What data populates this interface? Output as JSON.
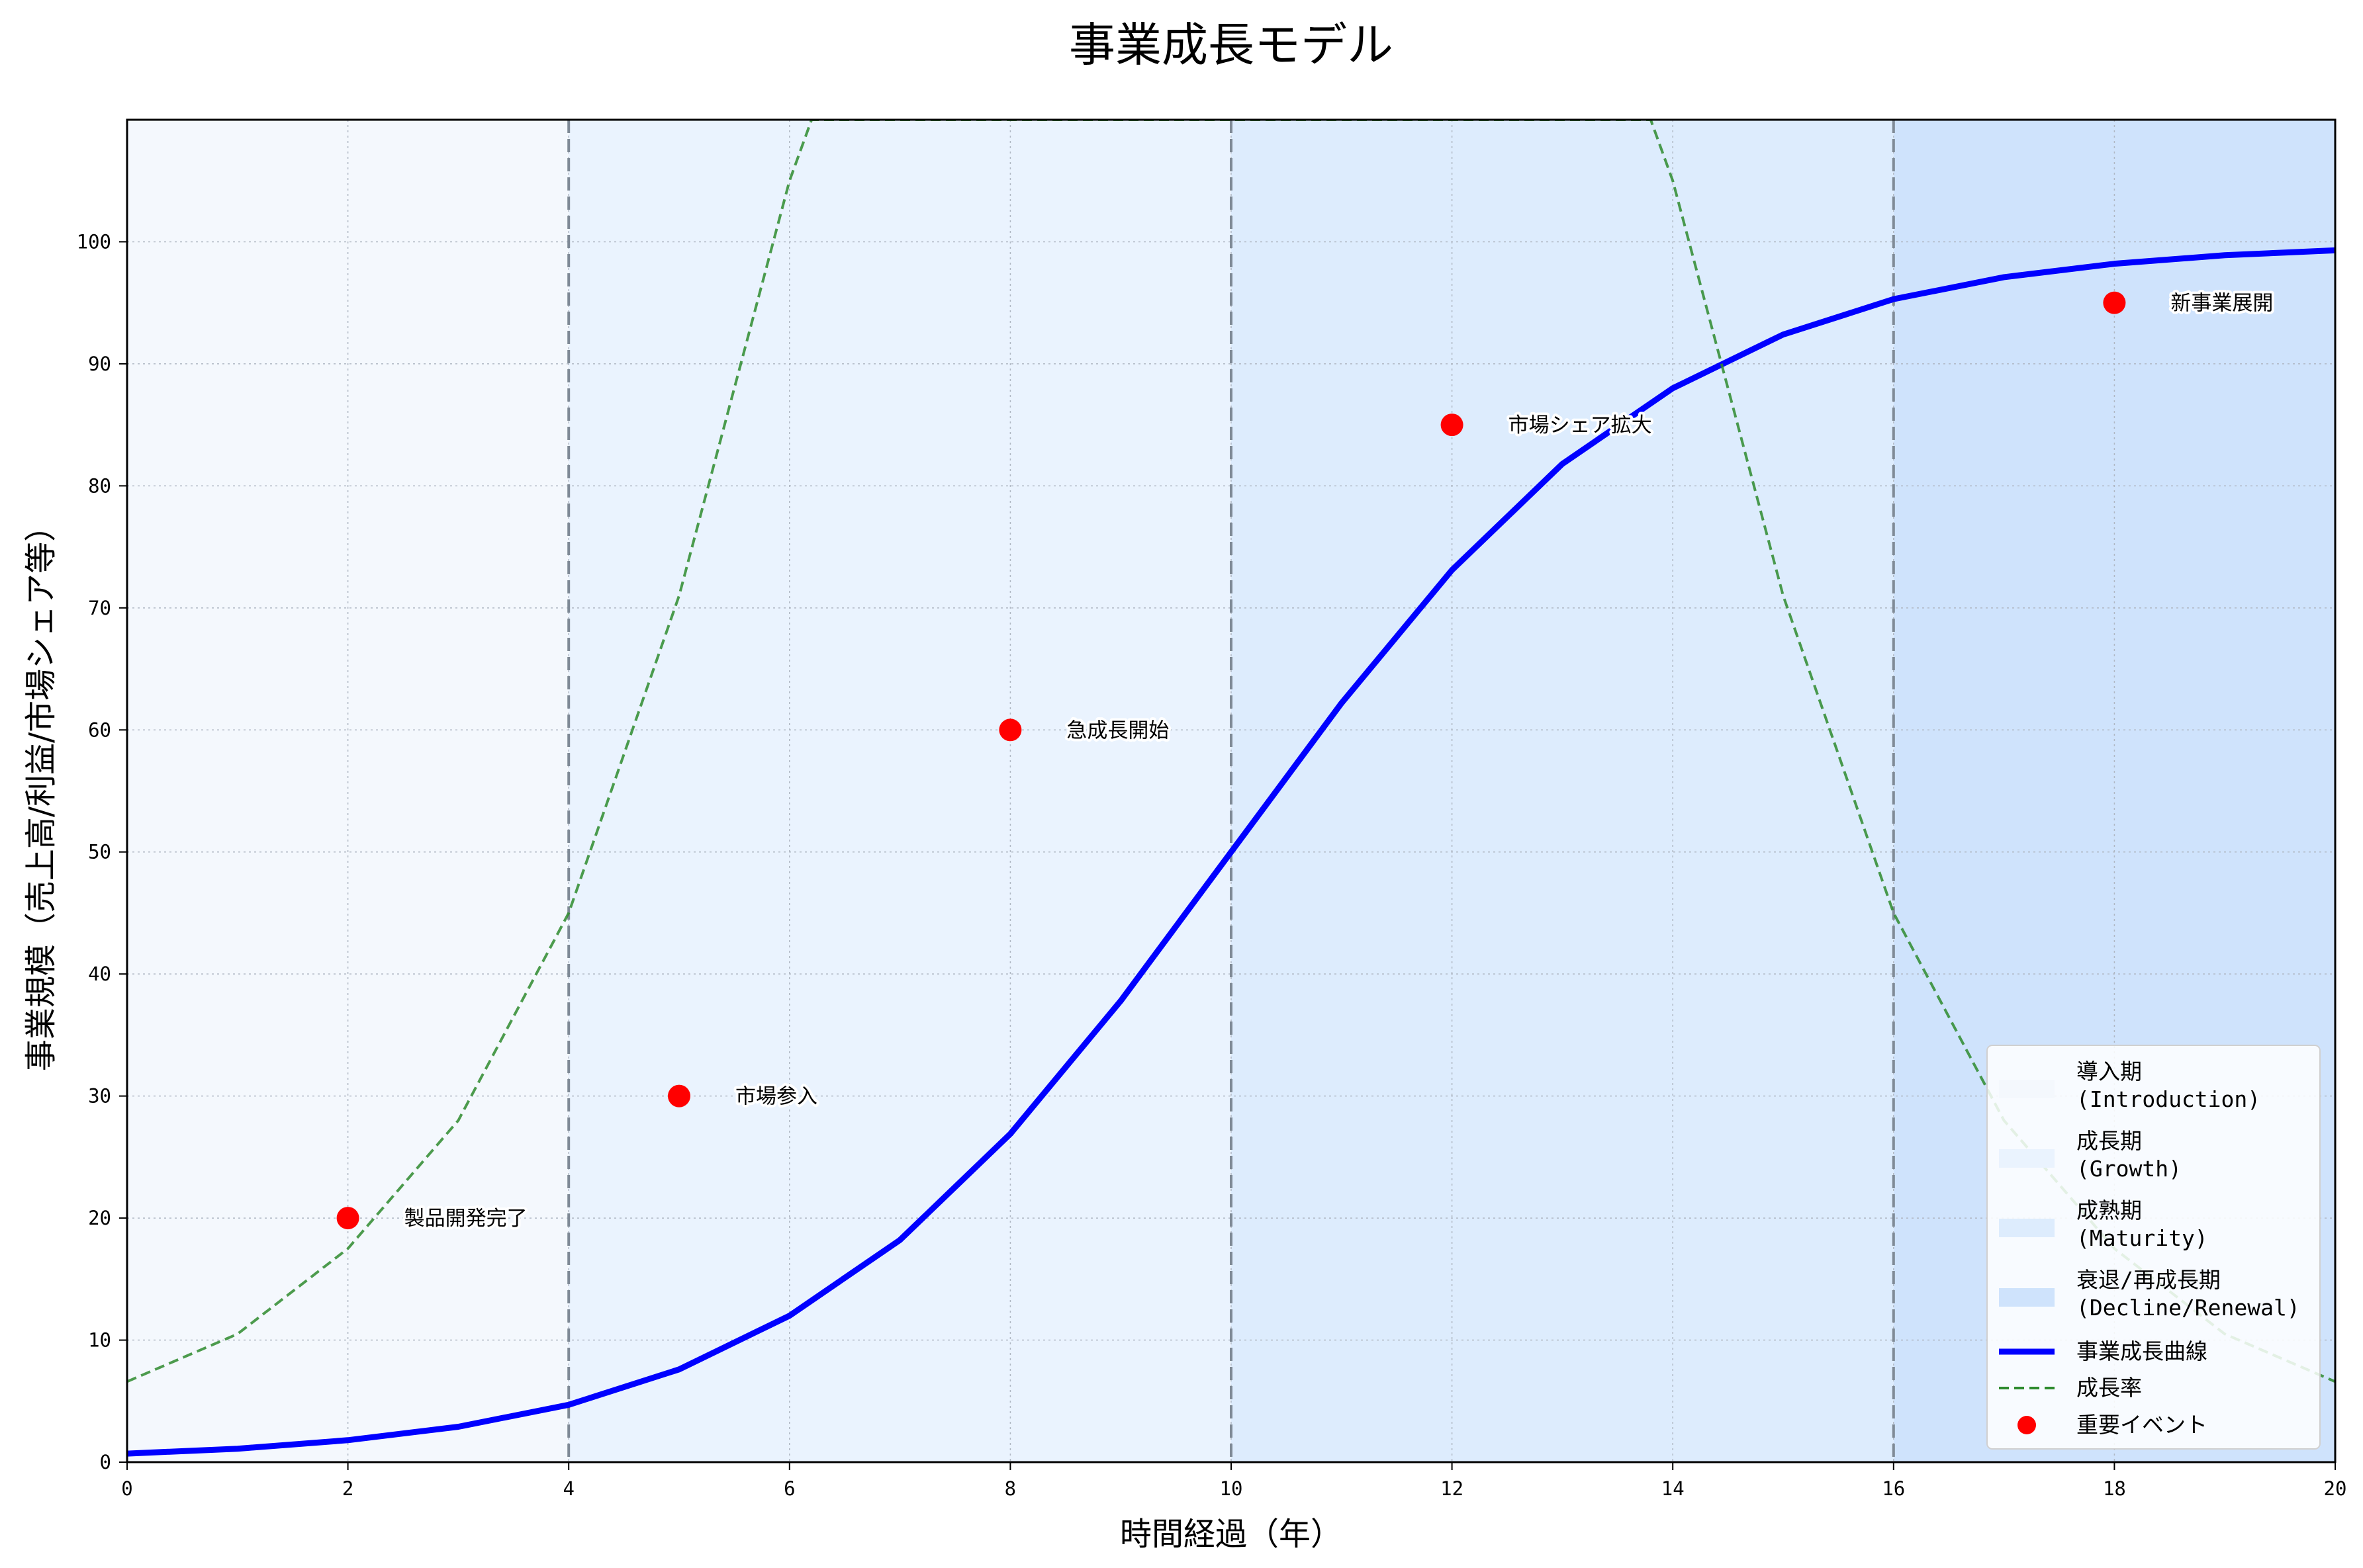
{
  "chart_data": {
    "type": "line",
    "title": "事業成長モデル",
    "xlabel": "時間経過（年）",
    "ylabel": "事業規模（売上高/利益/市場シェア等）",
    "xlim": [
      0,
      20
    ],
    "ylim": [
      0,
      110
    ],
    "xticks": [
      0,
      2,
      4,
      6,
      8,
      10,
      12,
      14,
      16,
      18,
      20
    ],
    "yticks": [
      0,
      10,
      20,
      30,
      40,
      50,
      60,
      70,
      80,
      90,
      100
    ],
    "grid": true,
    "legend_position": "lower-right",
    "phase_boundaries": [
      4,
      10,
      16
    ],
    "phases": [
      {
        "label": "導入期\n(Introduction)",
        "x": [
          0,
          4
        ],
        "color": "#f4f8fd"
      },
      {
        "label": "成長期\n(Growth)",
        "x": [
          4,
          10
        ],
        "color": "#eaf3fe"
      },
      {
        "label": "成熟期\n(Maturity)",
        "x": [
          10,
          16
        ],
        "color": "#ddecfd"
      },
      {
        "label": "衰退/再成長期\n(Decline/Renewal)",
        "x": [
          16,
          20
        ],
        "color": "#cfe3fc"
      }
    ],
    "series": [
      {
        "name": "事業成長曲線",
        "style": "solid",
        "color": "#0000ff",
        "x": [
          0,
          1,
          2,
          3,
          4,
          5,
          6,
          7,
          8,
          9,
          10,
          11,
          12,
          13,
          14,
          15,
          16,
          17,
          18,
          19,
          20
        ],
        "y": [
          0.7,
          1.1,
          1.8,
          2.9,
          4.7,
          7.6,
          12.0,
          18.2,
          26.9,
          37.8,
          50.0,
          62.2,
          73.1,
          81.8,
          88.0,
          92.4,
          95.3,
          97.1,
          98.2,
          98.9,
          99.3
        ]
      },
      {
        "name": "成長率",
        "style": "dashed",
        "color": "#2e8b2e",
        "x": [
          0,
          1,
          2,
          3,
          4,
          5,
          6,
          6.2,
          13.8,
          14,
          15,
          16,
          17,
          18,
          19,
          20
        ],
        "y": [
          6.6,
          10.5,
          17.5,
          28.0,
          45.0,
          71.0,
          105.0,
          110,
          110,
          105.0,
          71.0,
          45.0,
          28.0,
          17.5,
          10.5,
          6.6
        ]
      }
    ],
    "events": {
      "name": "重要イベント",
      "color": "#ff0000",
      "points": [
        {
          "x": 2,
          "y": 20,
          "label": "製品開発完了"
        },
        {
          "x": 5,
          "y": 30,
          "label": "市場参入"
        },
        {
          "x": 8,
          "y": 60,
          "label": "急成長開始"
        },
        {
          "x": 12,
          "y": 85,
          "label": "市場シェア拡大"
        },
        {
          "x": 18,
          "y": 95,
          "label": "新事業展開"
        }
      ]
    }
  }
}
